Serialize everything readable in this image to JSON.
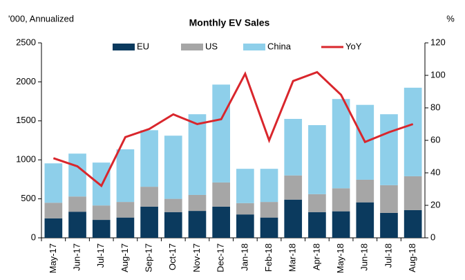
{
  "chart_data": {
    "type": "stacked-bar-line",
    "title": "Monthly EV Sales",
    "y_label": "'000, Annualized",
    "y2_label": "%",
    "categories": [
      "May-17",
      "Jun-17",
      "Jul-17",
      "Aug-17",
      "Sep-17",
      "Oct-17",
      "Nov-17",
      "Dec-17",
      "Jan-18",
      "Feb-18",
      "Mar-18",
      "Apr-18",
      "May-18",
      "Jun-18",
      "Jul-18",
      "Aug-18"
    ],
    "series": [
      {
        "name": "EU",
        "color": "#0b3a5e",
        "values": [
          250,
          335,
          230,
          260,
          400,
          330,
          345,
          400,
          300,
          260,
          490,
          330,
          340,
          455,
          320,
          355
        ]
      },
      {
        "name": "US",
        "color": "#a6a6a6",
        "values": [
          200,
          195,
          185,
          200,
          255,
          170,
          205,
          310,
          145,
          200,
          310,
          230,
          295,
          290,
          355,
          435
        ]
      },
      {
        "name": "China",
        "color": "#8ecfea",
        "values": [
          505,
          550,
          550,
          675,
          725,
          810,
          1035,
          1255,
          440,
          425,
          725,
          885,
          1145,
          960,
          910,
          1135
        ]
      },
      {
        "name": "YoY",
        "color": "#d9262c",
        "axis": "y2",
        "values": [
          49,
          44,
          32,
          62,
          67,
          76,
          70,
          73,
          101,
          60,
          96.5,
          102,
          88,
          59,
          65,
          70
        ]
      }
    ],
    "ylim": [
      0,
      2500
    ],
    "yticks": [
      0,
      500,
      1000,
      1500,
      2000,
      2500
    ],
    "y2lim": [
      0,
      120
    ],
    "y2ticks": [
      0,
      20,
      40,
      60,
      80,
      100,
      120
    ],
    "legend": "top"
  }
}
